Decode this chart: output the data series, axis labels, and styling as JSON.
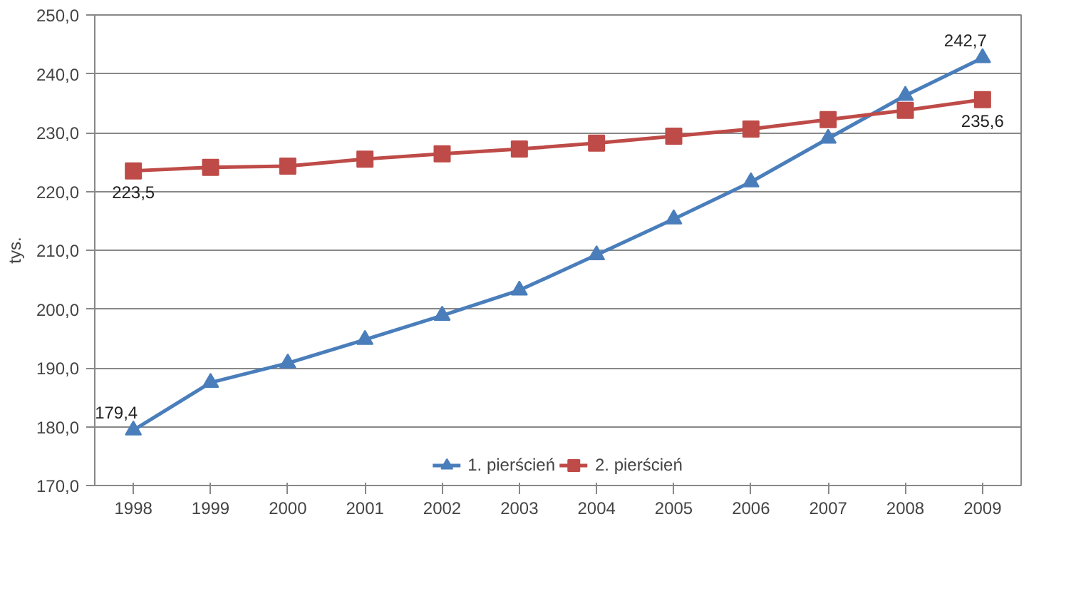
{
  "chart_data": {
    "type": "line",
    "ylabel": "tys.",
    "categories": [
      "1998",
      "1999",
      "2000",
      "2001",
      "2002",
      "2003",
      "2004",
      "2005",
      "2006",
      "2007",
      "2008",
      "2009"
    ],
    "series": [
      {
        "name": "1. pierścień",
        "color": "#4a7ebb",
        "marker": "triangle",
        "values": [
          179.4,
          187.5,
          190.8,
          194.8,
          198.9,
          203.2,
          209.2,
          215.3,
          221.6,
          229.0,
          236.3,
          242.7
        ],
        "value_labels": [
          "179,4",
          null,
          null,
          null,
          null,
          null,
          null,
          null,
          null,
          null,
          null,
          "242,7"
        ]
      },
      {
        "name": "2. pierścień",
        "color": "#be4b48",
        "marker": "square",
        "values": [
          223.5,
          224.1,
          224.3,
          225.5,
          226.4,
          227.2,
          228.2,
          229.4,
          230.6,
          232.2,
          233.8,
          235.6
        ],
        "value_labels": [
          "223,5",
          null,
          null,
          null,
          null,
          null,
          null,
          null,
          null,
          null,
          null,
          "235,6"
        ]
      }
    ],
    "ylim": [
      170,
      250
    ],
    "yticks": [
      {
        "value": 170,
        "label": "170,0"
      },
      {
        "value": 180,
        "label": "180,0"
      },
      {
        "value": 190,
        "label": "190,0"
      },
      {
        "value": 200,
        "label": "200,0"
      },
      {
        "value": 210,
        "label": "210,0"
      },
      {
        "value": 220,
        "label": "220,0"
      },
      {
        "value": 230,
        "label": "230,0"
      },
      {
        "value": 240,
        "label": "240,0"
      },
      {
        "value": 250,
        "label": "250,0"
      }
    ],
    "grid": "y",
    "legend": "bottom",
    "line_style": "solid"
  }
}
